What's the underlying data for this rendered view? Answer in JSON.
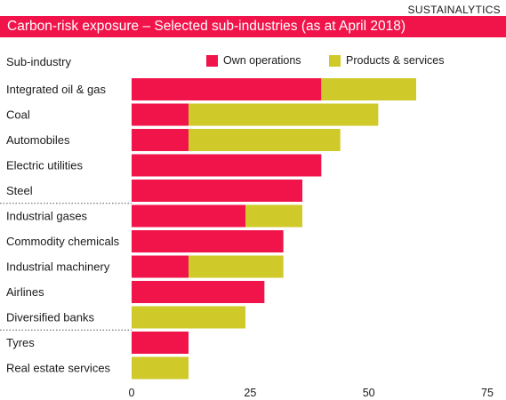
{
  "source": "SUSTAINALYTICS",
  "colors": {
    "own": "#f0144a",
    "products": "#cfc92a"
  },
  "chart_data": {
    "type": "bar",
    "orientation": "horizontal",
    "stacked": true,
    "title": "Carbon-risk exposure – Selected sub-industries (as at April 2018)",
    "category_header": "Sub-industry",
    "categories": [
      "Integrated oil & gas",
      "Coal",
      "Automobiles",
      "Electric utilities",
      "Steel",
      "Industrial gases",
      "Commodity chemicals",
      "Industrial machinery",
      "Airlines",
      "Diversified banks",
      "Tyres",
      "Real estate services"
    ],
    "series": [
      {
        "name": "Own operations",
        "values": [
          40,
          12,
          12,
          40,
          36,
          24,
          32,
          12,
          28,
          0,
          12,
          0
        ]
      },
      {
        "name": "Products & services",
        "values": [
          20,
          40,
          32,
          0,
          0,
          12,
          0,
          20,
          0,
          24,
          0,
          12
        ]
      }
    ],
    "xlim": [
      0,
      75
    ],
    "xticks": [
      0,
      25,
      50,
      75
    ],
    "legend_position": "top",
    "group_separators_after": [
      4,
      9
    ],
    "grid": false
  }
}
